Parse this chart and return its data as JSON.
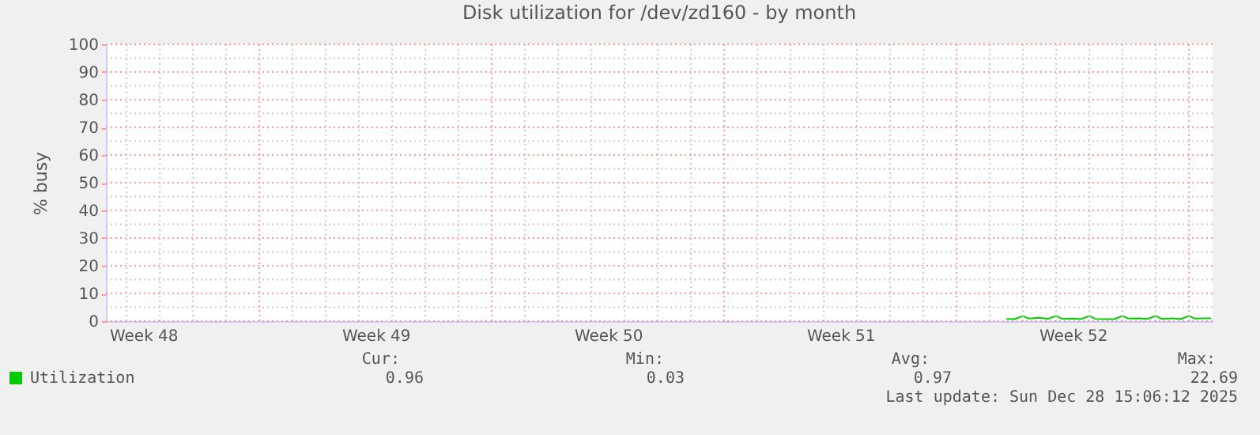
{
  "chart_data": {
    "type": "line",
    "title": "Disk utilization for /dev/zd160 - by month",
    "ylabel": "% busy",
    "x": [
      "2025-12-22T12:00",
      "2025-12-22T18:00",
      "2025-12-23T00:00",
      "2025-12-23T04:00",
      "2025-12-23T12:00",
      "2025-12-23T18:00",
      "2025-12-24T00:00",
      "2025-12-24T04:00",
      "2025-12-24T12:00",
      "2025-12-24T18:00",
      "2025-12-25T00:00",
      "2025-12-25T04:00",
      "2025-12-25T12:00",
      "2025-12-25T18:00",
      "2025-12-26T00:00",
      "2025-12-26T04:00",
      "2025-12-26T12:00",
      "2025-12-26T18:00",
      "2025-12-27T00:00",
      "2025-12-27T04:00",
      "2025-12-27T12:00",
      "2025-12-27T18:00",
      "2025-12-28T00:00",
      "2025-12-28T04:00",
      "2025-12-28T12:00",
      "2025-12-28T16:00"
    ],
    "series": [
      {
        "name": "Utilization",
        "color": "#00cc00",
        "values": [
          0.8,
          0.7,
          1.9,
          0.9,
          1.2,
          0.8,
          1.9,
          0.8,
          0.9,
          0.7,
          1.9,
          0.8,
          0.7,
          0.7,
          1.9,
          0.9,
          1.0,
          0.8,
          1.9,
          0.8,
          1.0,
          0.7,
          1.9,
          0.9,
          1.0,
          1.0
        ]
      }
    ],
    "xlim": [
      "2025-11-25T09:00",
      "2025-12-28T17:00"
    ],
    "xticks": [
      {
        "value": "2025-11-26T12:00",
        "label": "Week 48"
      },
      {
        "value": "2025-12-03T12:00",
        "label": "Week 49"
      },
      {
        "value": "2025-12-10T12:00",
        "label": "Week 50"
      },
      {
        "value": "2025-12-17T12:00",
        "label": "Week 51"
      },
      {
        "value": "2025-12-24T12:00",
        "label": "Week 52"
      }
    ],
    "ylim": [
      0,
      100
    ],
    "yticks": [
      0,
      10,
      20,
      30,
      40,
      50,
      60,
      70,
      80,
      90,
      100
    ],
    "grid": true,
    "legend": "bottom",
    "annotations": [
      "Cur:",
      "Min:",
      "Avg:",
      "Max:",
      "0.96",
      "0.03",
      "0.97",
      "22.69",
      "Last update: Sun Dec 28 15:06:12 2025"
    ]
  }
}
